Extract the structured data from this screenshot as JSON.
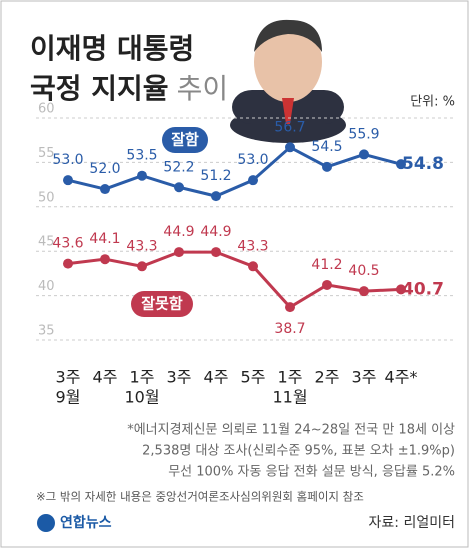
{
  "chart_data": {
    "type": "line",
    "title": "이재명 대통령",
    "title_line2": "국정 지지율",
    "title_suffix": "추이",
    "unit": "단위: %",
    "categories": [
      "3주",
      "4주",
      "1주",
      "3주",
      "4주",
      "5주",
      "1주",
      "2주",
      "3주",
      "4주*"
    ],
    "months": [
      "9월",
      null,
      "10월",
      null,
      null,
      null,
      "11월",
      null,
      null,
      null
    ],
    "series": [
      {
        "name": "잘함",
        "color": "#2a5ca8",
        "values": [
          53.0,
          52.0,
          53.5,
          52.2,
          51.2,
          53.0,
          56.7,
          54.5,
          55.9,
          54.8
        ],
        "value_labels": [
          "53.0",
          "52.0",
          "53.5",
          "52.2",
          "51.2",
          "53.0",
          "56.7",
          "54.5",
          "55.9",
          "54.8"
        ]
      },
      {
        "name": "잘못함",
        "color": "#c0394f",
        "values": [
          43.6,
          44.1,
          43.3,
          44.9,
          44.9,
          43.3,
          38.7,
          41.2,
          40.5,
          40.7
        ],
        "value_labels": [
          "43.6",
          "44.1",
          "43.3",
          "44.9",
          "44.9",
          "43.3",
          "38.7",
          "41.2",
          "40.5",
          "40.7"
        ]
      }
    ],
    "ylim": [
      35,
      60
    ],
    "yticks": [
      35,
      40,
      45,
      50,
      55,
      60
    ],
    "grid": true,
    "notes": [
      "*에너지경제신문 의뢰로 11월 24~28일 전국 만 18세 이상",
      "2,538명 대상 조사(신뢰수준 95%, 표본 오차 ±1.9%p)",
      "무선 100% 자동 응답 전화 설문 방식, 응답률 5.2%"
    ],
    "footnote": "※그 밖의 자세한 내용은 중앙선거여론조사심의위원회 홈페이지 참조",
    "source": "자료: 리얼미터",
    "logo": "연합뉴스"
  }
}
